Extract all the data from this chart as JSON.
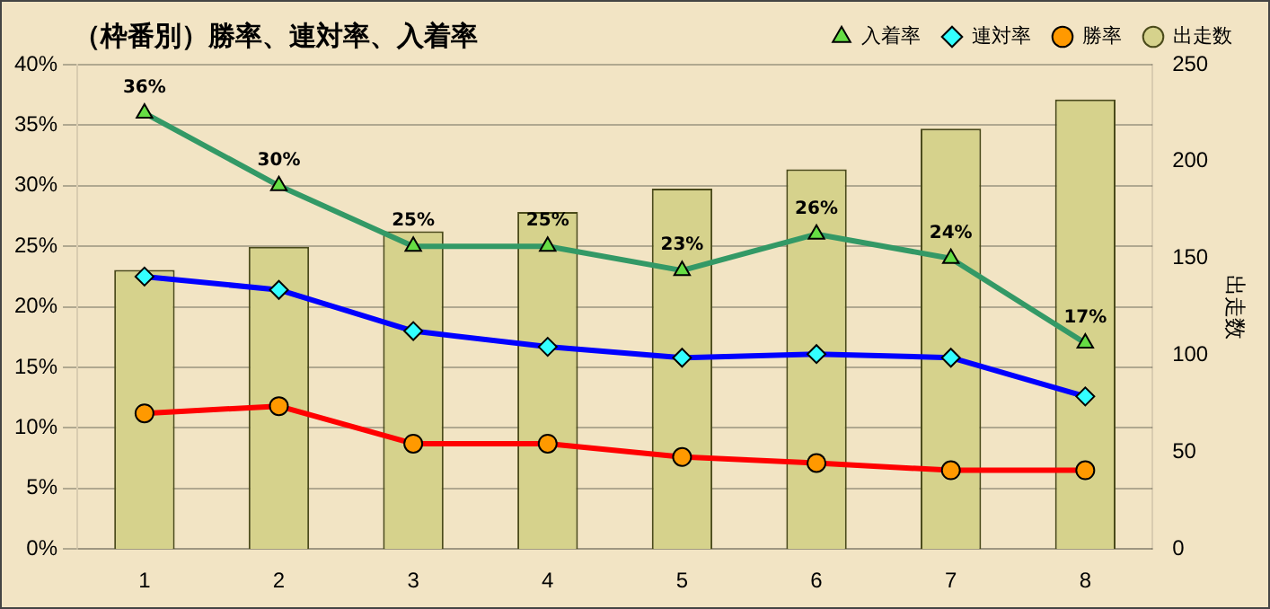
{
  "chart_data": {
    "type": "bar",
    "title": "（枠番別）勝率、連対率、入着率",
    "y2label": "出走数",
    "categories": [
      "1",
      "2",
      "3",
      "4",
      "5",
      "6",
      "7",
      "8"
    ],
    "series": [
      {
        "name": "出走数",
        "axis": "y2",
        "color": "#d6d28c",
        "values": [
          144,
          156,
          164,
          174,
          186,
          196,
          217,
          232
        ]
      },
      {
        "name": "入着率",
        "type": "line",
        "color": "#339966",
        "marker": "triangle",
        "values": [
          36,
          30,
          25,
          25,
          23,
          26,
          24,
          17
        ],
        "value_labels": [
          "36%",
          "30%",
          "25%",
          "25%",
          "23%",
          "26%",
          "24%",
          "17%"
        ]
      },
      {
        "name": "連対率",
        "type": "line",
        "color": "#0000ff",
        "marker": "diamond",
        "values": [
          22.5,
          21.4,
          18.0,
          16.7,
          15.8,
          16.1,
          15.8,
          12.6
        ]
      },
      {
        "name": "勝率",
        "type": "line",
        "color": "#ff0000",
        "marker": "circle",
        "values": [
          11.2,
          11.8,
          8.7,
          8.7,
          7.6,
          7.1,
          6.5,
          6.5
        ]
      }
    ],
    "ylim": [
      0,
      40
    ],
    "yticks": [
      {
        "value": 0,
        "label": "0%"
      },
      {
        "value": 5,
        "label": "5%"
      },
      {
        "value": 10,
        "label": "10%"
      },
      {
        "value": 15,
        "label": "15%"
      },
      {
        "value": 20,
        "label": "20%"
      },
      {
        "value": 25,
        "label": "25%"
      },
      {
        "value": 30,
        "label": "30%"
      },
      {
        "value": 35,
        "label": "35%"
      },
      {
        "value": 40,
        "label": "40%"
      }
    ],
    "y2lim": [
      0,
      250
    ],
    "y2ticks": [
      0,
      50,
      100,
      150,
      200,
      250
    ],
    "grid": "y",
    "legend": "top right"
  }
}
